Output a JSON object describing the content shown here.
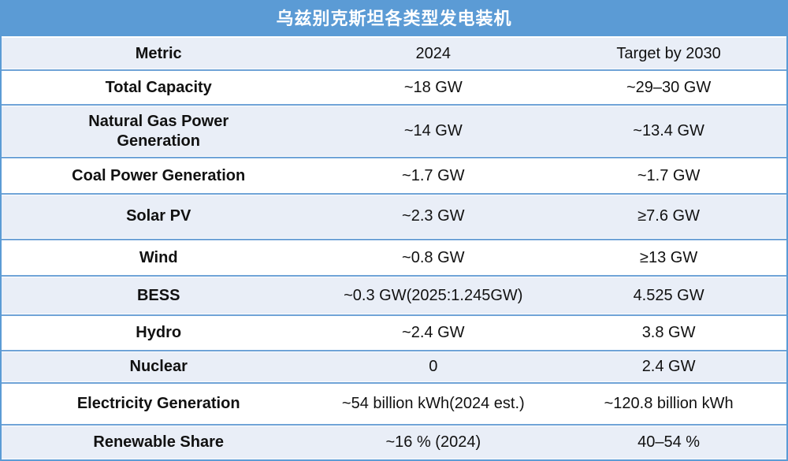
{
  "colors": {
    "title-bg": "#5b9bd5",
    "band-bg": "#e9eef7",
    "line": "#6fa3d7",
    "frame": "#5b9bd5",
    "ink": "#111111"
  },
  "table": {
    "title": "乌兹别克斯坦各类型发电装机",
    "columns": {
      "metric": "Metric",
      "y2024": "2024",
      "target": "Target by 2030"
    },
    "rows": [
      {
        "metric": "Total Capacity",
        "y2024": "~18 GW",
        "target": "~29–30 GW"
      },
      {
        "metric": "Natural Gas Power Generation",
        "y2024": "~14 GW",
        "target": "~13.4 GW"
      },
      {
        "metric": "Coal Power Generation",
        "y2024": "~1.7 GW",
        "target": "~1.7 GW"
      },
      {
        "metric": "Solar PV",
        "y2024": "~2.3 GW",
        "target": "≥7.6 GW"
      },
      {
        "metric": "Wind",
        "y2024": "~0.8 GW",
        "target": "≥13 GW"
      },
      {
        "metric": "BESS",
        "y2024": "~0.3 GW(2025:1.245GW)",
        "target": "4.525 GW"
      },
      {
        "metric": "Hydro",
        "y2024": "~2.4 GW",
        "target": "3.8 GW"
      },
      {
        "metric": "Nuclear",
        "y2024": "0",
        "target": "2.4 GW"
      },
      {
        "metric": "Electricity Generation",
        "y2024": "~54 billion kWh(2024 est.)",
        "target": "~120.8 billion kWh"
      },
      {
        "metric": "Renewable Share",
        "y2024": "~16 % (2024)",
        "target": "40–54 %"
      }
    ]
  }
}
